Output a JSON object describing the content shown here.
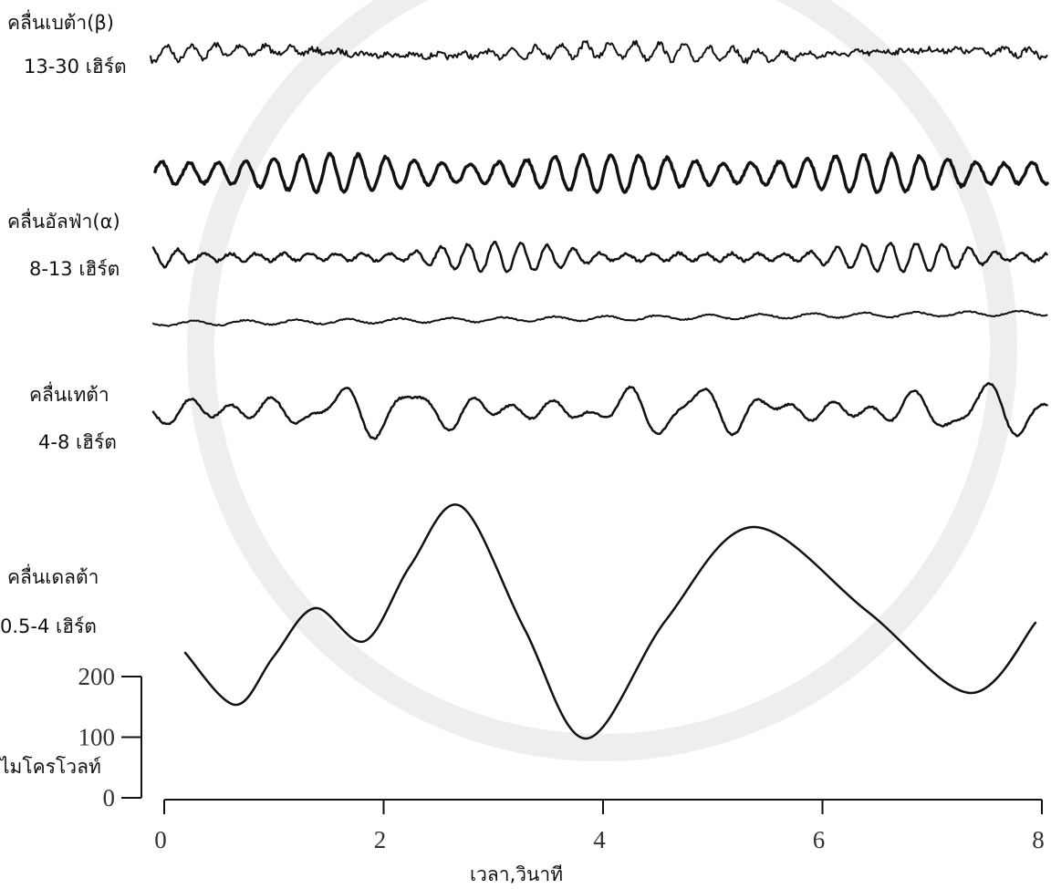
{
  "waves": [
    {
      "name": "คลื่นเบต้า(β)",
      "band": "13-30 เฮิร์ต"
    },
    {
      "name": "คลื่นอัลฟ่า(α)",
      "band": "8-13 เฮิร์ต"
    },
    {
      "name": "คลื่นเทต้า",
      "band": "4-8 เฮิร์ต"
    },
    {
      "name": "คลื่นเดลต้า",
      "band": "0.5-4 เฮิร์ต"
    }
  ],
  "y_axis": {
    "label": "ไมโครโวลท์",
    "lim": [
      0,
      200
    ],
    "ticks": [
      0,
      100,
      200
    ]
  },
  "x_axis": {
    "label": "เวลา,วินาที",
    "lim": [
      0,
      8
    ],
    "ticks": [
      0,
      2,
      4,
      6,
      8
    ]
  }
}
